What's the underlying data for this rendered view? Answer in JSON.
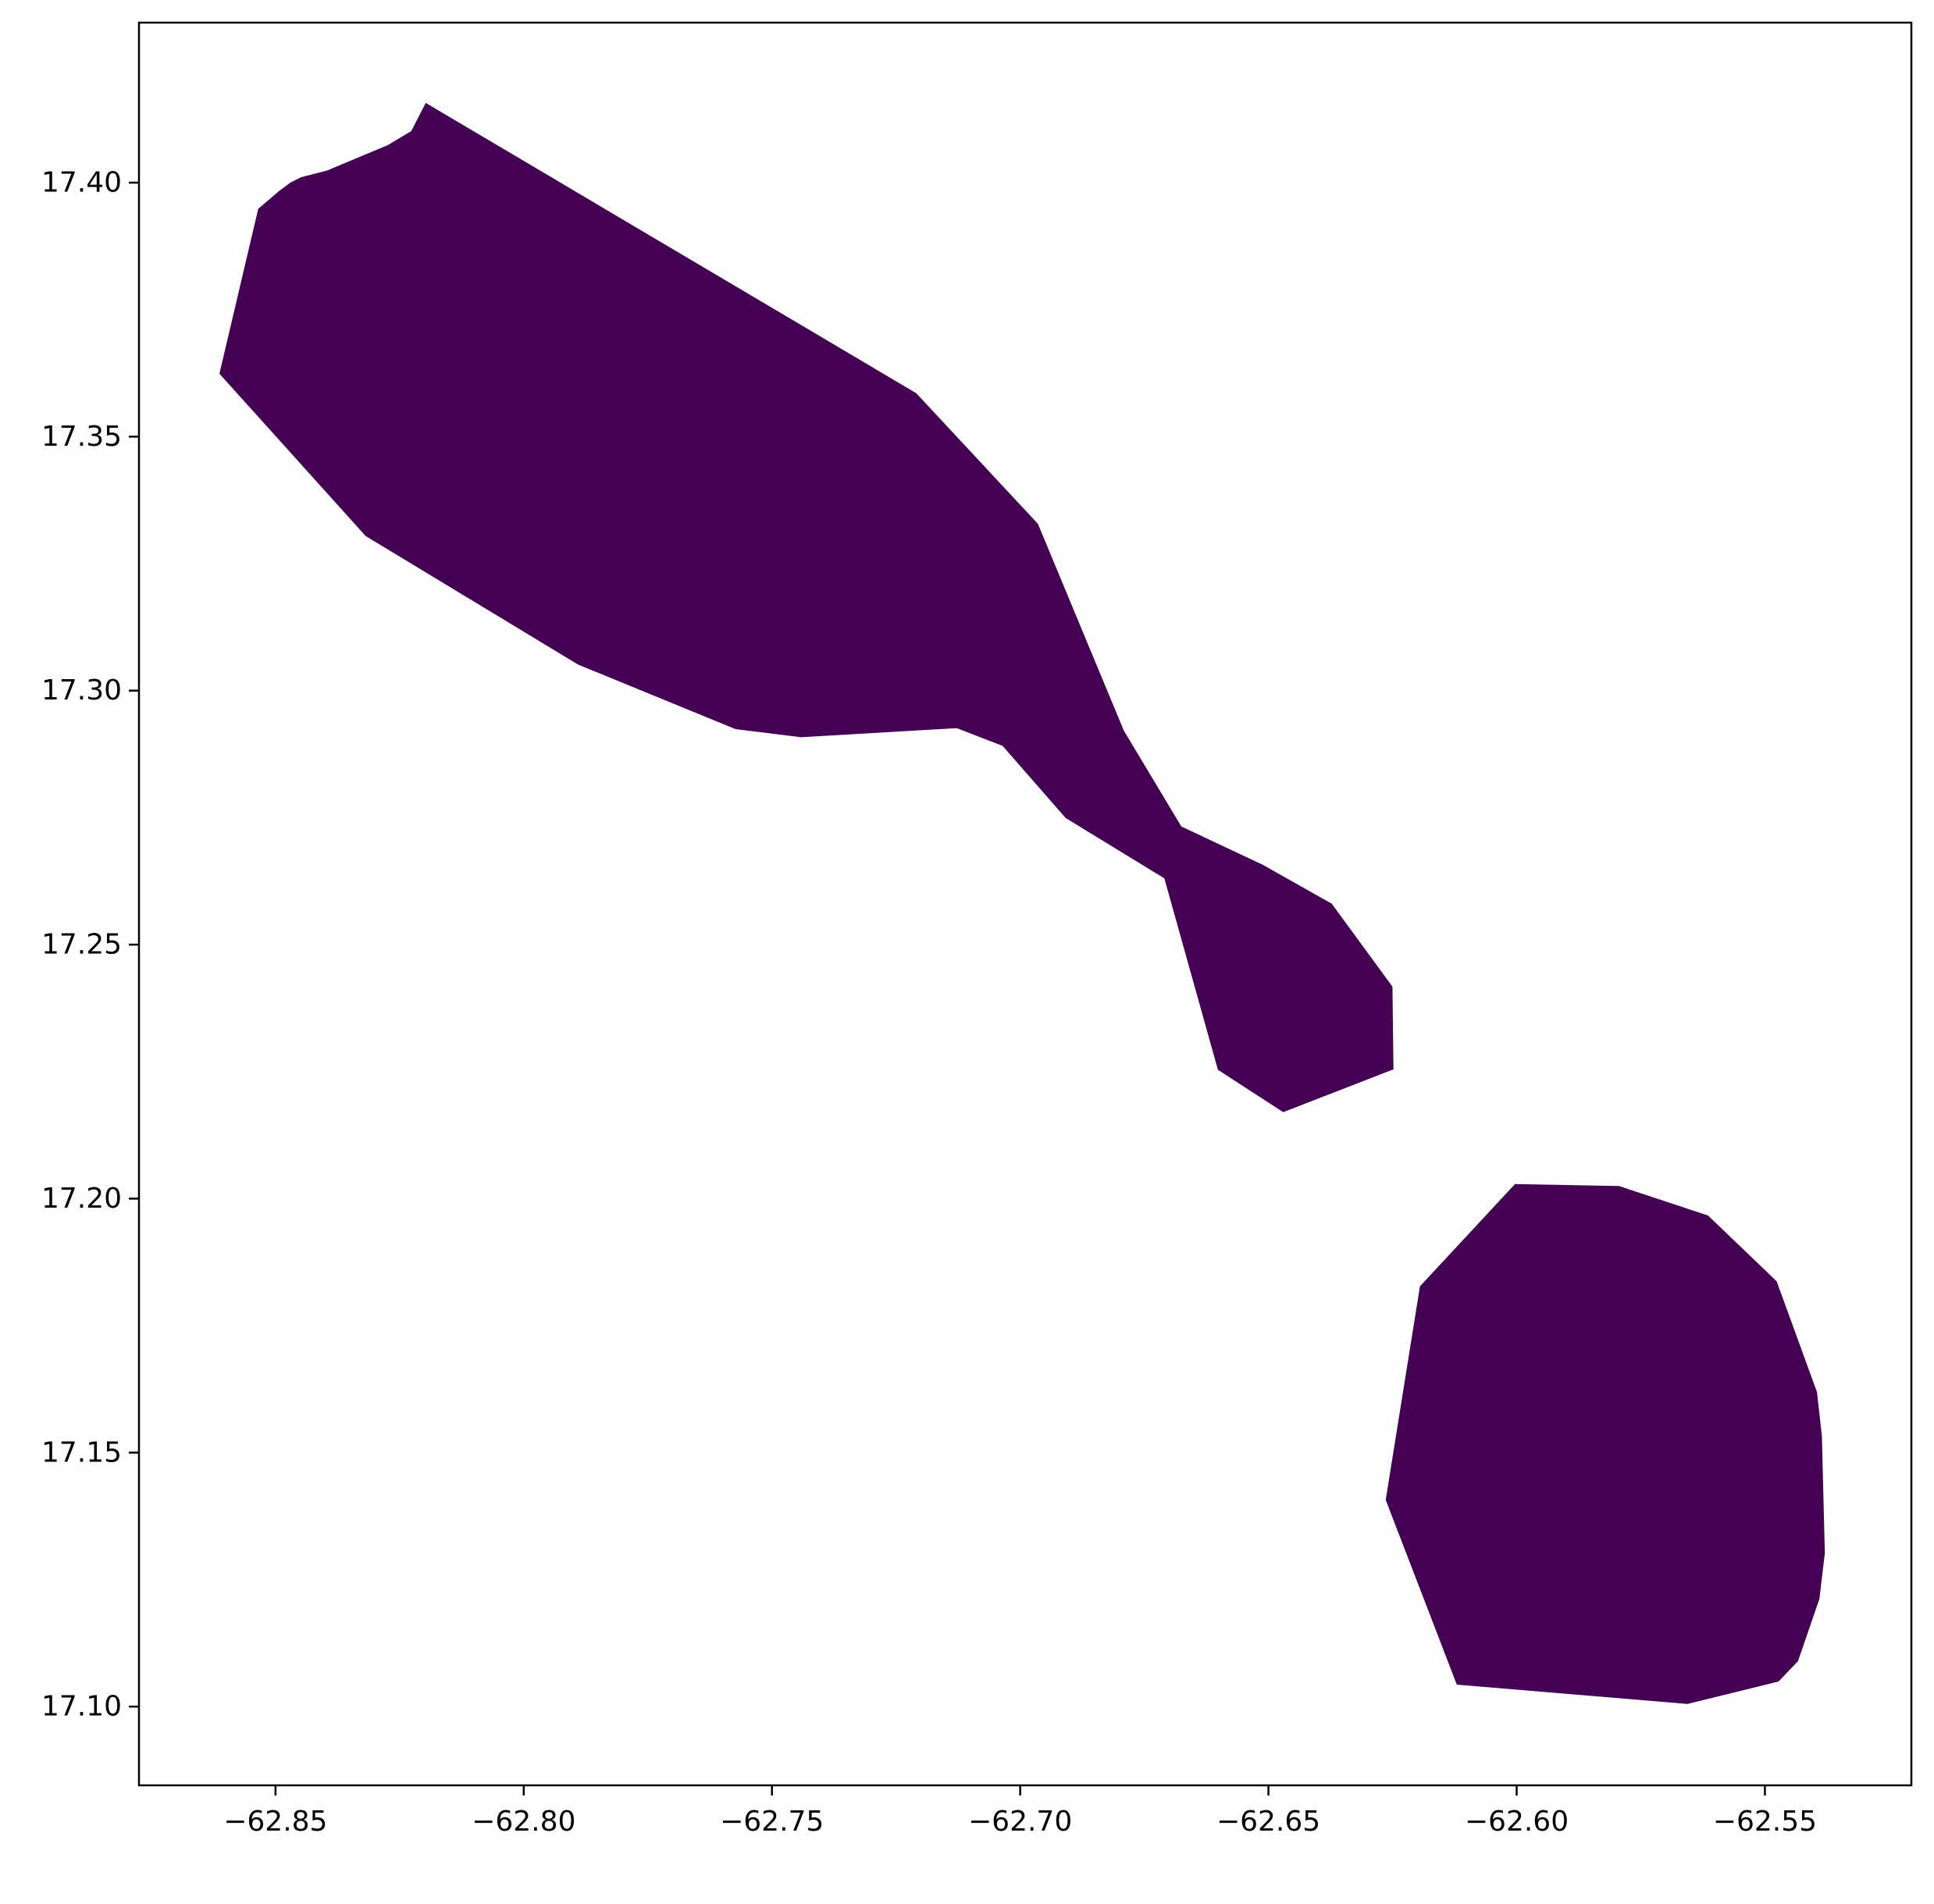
{
  "chart_data": {
    "type": "map",
    "title": "",
    "xlabel": "",
    "ylabel": "",
    "xlim": [
      -62.8775,
      -62.5205
    ],
    "ylim": [
      17.0845,
      17.4315
    ],
    "grid": false,
    "fill_color": "#440154",
    "x_ticks": [
      {
        "value": -62.85,
        "label": "−62.85"
      },
      {
        "value": -62.8,
        "label": "−62.80"
      },
      {
        "value": -62.75,
        "label": "−62.75"
      },
      {
        "value": -62.7,
        "label": "−62.70"
      },
      {
        "value": -62.65,
        "label": "−62.65"
      },
      {
        "value": -62.6,
        "label": "−62.60"
      },
      {
        "value": -62.55,
        "label": "−62.55"
      }
    ],
    "y_ticks": [
      {
        "value": 17.1,
        "label": "17.10"
      },
      {
        "value": 17.15,
        "label": "17.15"
      },
      {
        "value": 17.2,
        "label": "17.20"
      },
      {
        "value": 17.25,
        "label": "17.25"
      },
      {
        "value": 17.3,
        "label": "17.30"
      },
      {
        "value": 17.35,
        "label": "17.35"
      },
      {
        "value": 17.4,
        "label": "17.40"
      }
    ],
    "shapes": [
      {
        "points": [
          [
            -62.8197,
            17.4156
          ],
          [
            -62.721,
            17.3585
          ],
          [
            -62.6965,
            17.3328
          ],
          [
            -62.6792,
            17.2921
          ],
          [
            -62.6676,
            17.2732
          ],
          [
            -62.6511,
            17.2656
          ],
          [
            -62.6373,
            17.258
          ],
          [
            -62.6251,
            17.2417
          ],
          [
            -62.6249,
            17.2255
          ],
          [
            -62.647,
            17.2171
          ],
          [
            -62.6601,
            17.2254
          ],
          [
            -62.6709,
            17.2631
          ],
          [
            -62.6908,
            17.275
          ],
          [
            -62.7035,
            17.2892
          ],
          [
            -62.7128,
            17.2927
          ],
          [
            -62.7441,
            17.2909
          ],
          [
            -62.7573,
            17.2925
          ],
          [
            -62.789,
            17.3052
          ],
          [
            -62.8318,
            17.3305
          ],
          [
            -62.8612,
            17.3624
          ],
          [
            -62.8534,
            17.3948
          ],
          [
            -62.8492,
            17.3983
          ],
          [
            -62.8469,
            17.4
          ],
          [
            -62.8448,
            17.401
          ],
          [
            -62.8396,
            17.4023
          ],
          [
            -62.8274,
            17.4073
          ],
          [
            -62.8226,
            17.4101
          ]
        ]
      },
      {
        "points": [
          [
            -62.6003,
            17.2028
          ],
          [
            -62.5794,
            17.2024
          ],
          [
            -62.5615,
            17.1966
          ],
          [
            -62.5477,
            17.1837
          ],
          [
            -62.5396,
            17.1619
          ],
          [
            -62.5386,
            17.1533
          ],
          [
            -62.538,
            17.1302
          ],
          [
            -62.5391,
            17.1212
          ],
          [
            -62.5434,
            17.109
          ],
          [
            -62.5473,
            17.105
          ],
          [
            -62.5656,
            17.1006
          ],
          [
            -62.612,
            17.1044
          ],
          [
            -62.6263,
            17.1407
          ],
          [
            -62.6194,
            17.1827
          ]
        ]
      }
    ]
  }
}
